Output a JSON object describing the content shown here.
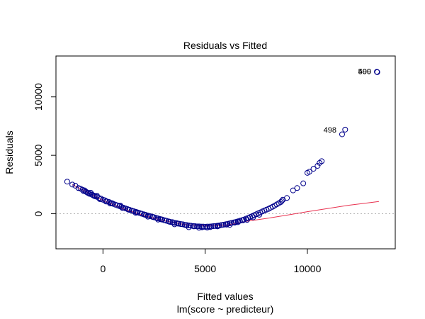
{
  "chart_data": {
    "type": "scatter",
    "title": "Residuals vs Fitted",
    "xlabel": "Fitted values",
    "subtitle": "lm(score ~ predicteur)",
    "ylabel": "Residuals",
    "xlim": [
      -2300,
      14300
    ],
    "ylim": [
      -3000,
      13500
    ],
    "x_ticks": [
      0,
      5000,
      10000
    ],
    "y_ticks": [
      0,
      5000,
      10000
    ],
    "zero_line": true,
    "colors": {
      "points": "#00008b",
      "smooth": "#e8314f",
      "zero": "#b3b3b3"
    },
    "smooth_line": {
      "x": [
        -1500,
        0,
        1000,
        2000,
        3000,
        4000,
        5000,
        6000,
        7000,
        8000,
        9000,
        10000,
        11000,
        12000,
        13500
      ],
      "y": [
        2500,
        1150,
        420,
        -150,
        -600,
        -920,
        -1050,
        -980,
        -650,
        -400,
        -120,
        180,
        450,
        720,
        1050
      ]
    },
    "outlier_labels": [
      {
        "text": "498",
        "x": 11700,
        "y": 7200
      },
      {
        "text": "499",
        "x": 13400,
        "y": 12200
      },
      {
        "text": "500",
        "x": 13400,
        "y": 12200
      }
    ],
    "series": [
      {
        "name": "residuals",
        "points": [
          [
            -1750,
            2750
          ],
          [
            -1500,
            2500
          ],
          [
            -1350,
            2400
          ],
          [
            -1100,
            2150
          ],
          [
            -1000,
            2050
          ],
          [
            -950,
            1950
          ],
          [
            -850,
            1900
          ],
          [
            -800,
            1850
          ],
          [
            -700,
            1750
          ],
          [
            -650,
            1700
          ],
          [
            -550,
            1650
          ],
          [
            -500,
            1600
          ],
          [
            -400,
            1500
          ],
          [
            -300,
            1450
          ],
          [
            -200,
            1350
          ],
          [
            -100,
            1300
          ],
          [
            0,
            1200
          ],
          [
            100,
            1150
          ],
          [
            200,
            1050
          ],
          [
            300,
            1000
          ],
          [
            400,
            920
          ],
          [
            500,
            850
          ],
          [
            600,
            780
          ],
          [
            700,
            720
          ],
          [
            800,
            650
          ],
          [
            900,
            600
          ],
          [
            1000,
            520
          ],
          [
            1100,
            460
          ],
          [
            1200,
            400
          ],
          [
            1300,
            340
          ],
          [
            1400,
            280
          ],
          [
            1500,
            220
          ],
          [
            1600,
            170
          ],
          [
            1700,
            110
          ],
          [
            1800,
            60
          ],
          [
            1900,
            0
          ],
          [
            2000,
            -50
          ],
          [
            2100,
            -100
          ],
          [
            2200,
            -150
          ],
          [
            2300,
            -200
          ],
          [
            2400,
            -250
          ],
          [
            2500,
            -300
          ],
          [
            2600,
            -350
          ],
          [
            2700,
            -400
          ],
          [
            2800,
            -450
          ],
          [
            2900,
            -500
          ],
          [
            3000,
            -550
          ],
          [
            3100,
            -600
          ],
          [
            3200,
            -650
          ],
          [
            3300,
            -700
          ],
          [
            3400,
            -720
          ],
          [
            3500,
            -780
          ],
          [
            3600,
            -800
          ],
          [
            3700,
            -850
          ],
          [
            3800,
            -880
          ],
          [
            3900,
            -900
          ],
          [
            4000,
            -950
          ],
          [
            4100,
            -970
          ],
          [
            4200,
            -1000
          ],
          [
            4300,
            -1020
          ],
          [
            4400,
            -1050
          ],
          [
            4500,
            -1060
          ],
          [
            4600,
            -1080
          ],
          [
            4700,
            -1080
          ],
          [
            4800,
            -1100
          ],
          [
            4900,
            -1100
          ],
          [
            5000,
            -1120
          ],
          [
            5100,
            -1100
          ],
          [
            5200,
            -1100
          ],
          [
            5300,
            -1080
          ],
          [
            5400,
            -1060
          ],
          [
            5500,
            -1050
          ],
          [
            5600,
            -1020
          ],
          [
            5700,
            -1000
          ],
          [
            5800,
            -960
          ],
          [
            5900,
            -940
          ],
          [
            6000,
            -900
          ],
          [
            6100,
            -860
          ],
          [
            6200,
            -820
          ],
          [
            6300,
            -780
          ],
          [
            6400,
            -740
          ],
          [
            6500,
            -700
          ],
          [
            6600,
            -650
          ],
          [
            6700,
            -600
          ],
          [
            6800,
            -550
          ],
          [
            6900,
            -500
          ],
          [
            7000,
            -420
          ],
          [
            7100,
            -350
          ],
          [
            7200,
            -280
          ],
          [
            7300,
            -200
          ],
          [
            7400,
            -120
          ],
          [
            7500,
            -40
          ],
          [
            7600,
            40
          ],
          [
            7700,
            120
          ],
          [
            7800,
            200
          ],
          [
            7900,
            280
          ],
          [
            8000,
            350
          ],
          [
            8100,
            420
          ],
          [
            8200,
            520
          ],
          [
            8300,
            600
          ],
          [
            8400,
            700
          ],
          [
            8500,
            800
          ],
          [
            8600,
            900
          ],
          [
            8700,
            1000
          ],
          [
            8750,
            1100
          ],
          [
            8800,
            1200
          ],
          [
            9000,
            1350
          ],
          [
            9300,
            2000
          ],
          [
            9500,
            2200
          ],
          [
            9800,
            2600
          ],
          [
            10000,
            3500
          ],
          [
            10100,
            3600
          ],
          [
            10300,
            3850
          ],
          [
            10500,
            4100
          ],
          [
            10600,
            4350
          ],
          [
            10700,
            4500
          ],
          [
            11700,
            6800
          ],
          [
            11850,
            7200
          ],
          [
            13400,
            12150
          ],
          [
            13420,
            12120
          ],
          [
            -600,
            1800
          ],
          [
            -300,
            1550
          ],
          [
            150,
            1050
          ],
          [
            450,
            900
          ],
          [
            850,
            700
          ],
          [
            1250,
            350
          ],
          [
            1650,
            130
          ],
          [
            2050,
            -80
          ],
          [
            2450,
            -280
          ],
          [
            2850,
            -480
          ],
          [
            3250,
            -680
          ],
          [
            3650,
            -830
          ],
          [
            4050,
            -970
          ],
          [
            4450,
            -1080
          ],
          [
            4850,
            -1160
          ],
          [
            5250,
            -1140
          ],
          [
            5650,
            -1040
          ],
          [
            6050,
            -930
          ],
          [
            6450,
            -760
          ],
          [
            6850,
            -560
          ],
          [
            3500,
            -900
          ],
          [
            4200,
            -1150
          ],
          [
            4700,
            -1200
          ],
          [
            5100,
            -1180
          ],
          [
            5600,
            -1080
          ],
          [
            2700,
            -500
          ],
          [
            2200,
            -250
          ],
          [
            1600,
            80
          ],
          [
            950,
            500
          ],
          [
            350,
            880
          ],
          [
            -1200,
            2200
          ],
          [
            -900,
            2000
          ],
          [
            -750,
            1800
          ],
          [
            -450,
            1550
          ],
          [
            -150,
            1250
          ],
          [
            6200,
            -950
          ],
          [
            6600,
            -720
          ],
          [
            7050,
            -520
          ],
          [
            7350,
            -300
          ],
          [
            7650,
            -80
          ]
        ]
      }
    ]
  }
}
